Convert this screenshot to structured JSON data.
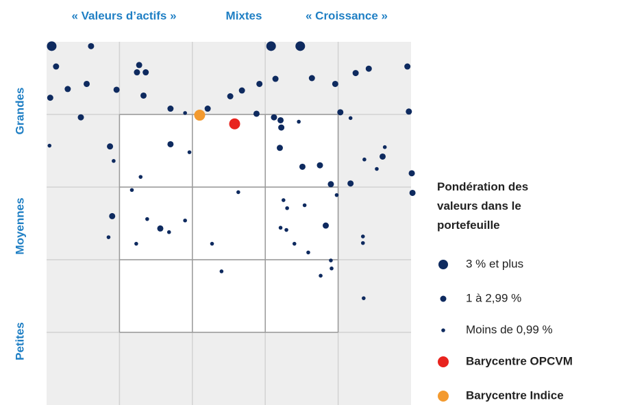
{
  "chart_data": {
    "type": "scatter",
    "column_labels": [
      "« Valeurs d’actifs »",
      "Mixtes",
      "« Croissance »"
    ],
    "row_labels": [
      "Grandes",
      "Moyennes",
      "Petites"
    ],
    "legend_title": "Pondération des valeurs dans le portefeuille",
    "xlim": [
      0,
      5
    ],
    "ylim": [
      0,
      5
    ],
    "xticks": [
      1,
      2,
      3,
      4
    ],
    "yticks": [
      1,
      2,
      3,
      4
    ],
    "grid": true,
    "series": [
      {
        "name": "3 % et plus",
        "color": "#0e2a5f",
        "x": [
          0.07,
          3.08,
          3.48
        ],
        "values": [
          4.94,
          4.94,
          4.94
        ]
      },
      {
        "name": "1 à 2,99 %",
        "color": "#0e2a5f",
        "x": [
          0.13,
          1.27,
          1.24,
          1.36,
          0.29,
          0.55,
          0.96,
          1.33,
          0.05,
          0.47,
          1.7,
          2.21,
          2.52,
          2.68,
          2.92,
          3.14,
          3.64,
          3.96,
          4.24,
          4.42,
          4.95,
          2.88,
          3.12,
          3.21,
          3.22,
          4.03,
          4.97,
          0.87,
          1.7,
          3.2,
          3.51,
          3.75,
          4.61,
          5.01,
          3.9,
          4.17,
          5.02,
          0.9,
          1.56,
          3.83,
          0.61
        ],
        "values": [
          4.66,
          4.68,
          4.58,
          4.58,
          4.35,
          4.42,
          4.34,
          4.26,
          4.23,
          3.96,
          4.08,
          4.08,
          4.25,
          4.33,
          4.42,
          4.49,
          4.5,
          4.42,
          4.57,
          4.63,
          4.66,
          4.01,
          3.96,
          3.92,
          3.82,
          4.03,
          4.04,
          3.56,
          3.59,
          3.54,
          3.28,
          3.3,
          3.42,
          3.19,
          3.04,
          3.05,
          2.92,
          2.6,
          2.43,
          2.47,
          4.94
        ]
      },
      {
        "name": "Moins de 0,99 %",
        "color": "#0e2a5f",
        "x": [
          0.04,
          0.92,
          1.29,
          1.17,
          1.9,
          1.96,
          2.63,
          3.46,
          4.17,
          4.64,
          4.36,
          4.53,
          3.98,
          3.25,
          3.3,
          3.54,
          1.38,
          1.68,
          1.9,
          0.85,
          1.23,
          2.27,
          2.4,
          3.21,
          3.29,
          3.4,
          3.59,
          3.9,
          3.91,
          3.76,
          4.34,
          4.34,
          4.35
        ],
        "values": [
          3.57,
          3.36,
          3.14,
          2.96,
          4.02,
          3.48,
          2.93,
          3.9,
          3.95,
          3.55,
          3.38,
          3.25,
          2.89,
          2.82,
          2.71,
          2.75,
          2.56,
          2.38,
          2.54,
          2.31,
          2.22,
          2.22,
          1.84,
          2.44,
          2.41,
          2.22,
          2.1,
          1.99,
          1.88,
          1.78,
          2.32,
          2.23,
          1.47
        ]
      },
      {
        "name": "Barycentre OPCVM",
        "color": "#e8231e",
        "x": [
          2.58
        ],
        "values": [
          3.87
        ]
      },
      {
        "name": "Barycentre Indice",
        "color": "#f39a2f",
        "x": [
          2.1
        ],
        "values": [
          3.99
        ]
      }
    ]
  }
}
